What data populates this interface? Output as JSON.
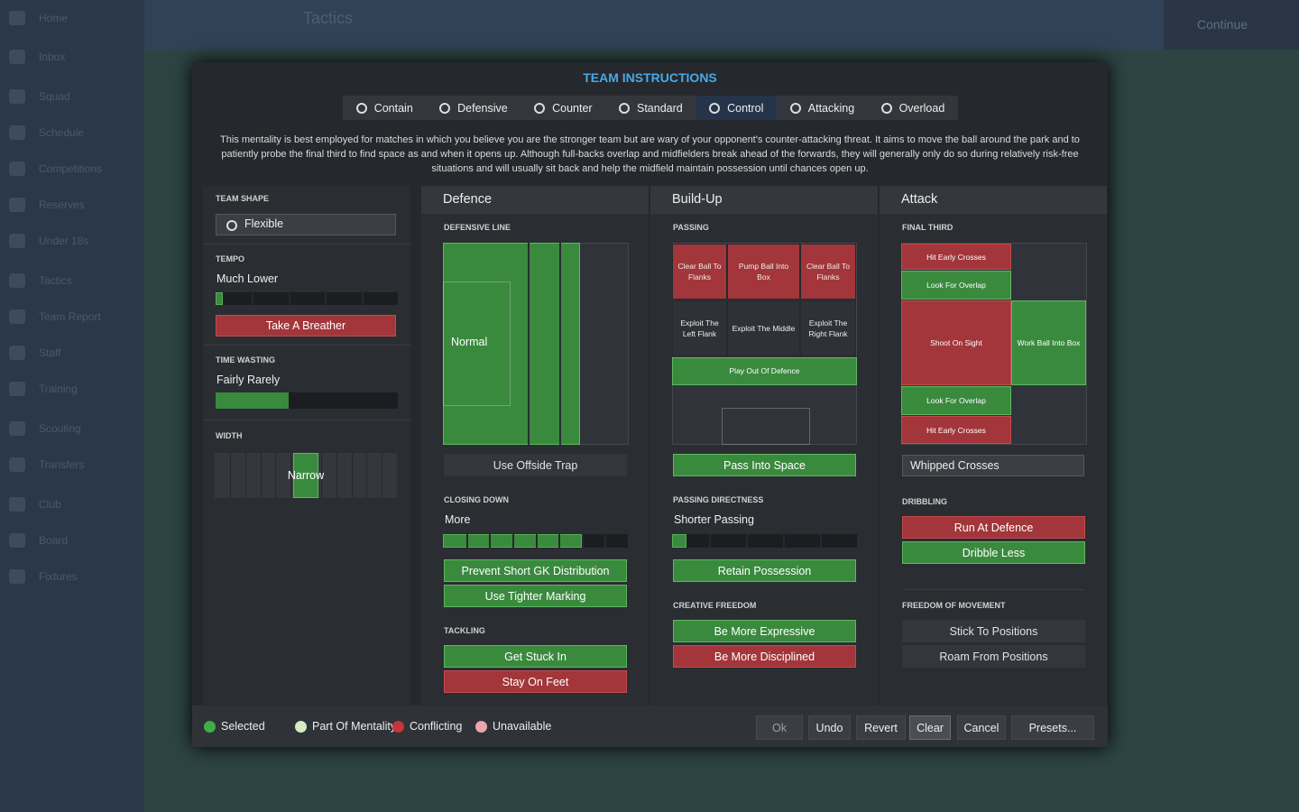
{
  "sidebar": {
    "items": [
      "Home",
      "Inbox",
      "Squad",
      "Schedule",
      "Competitions",
      "Reserves",
      "Under 18s",
      "Tactics",
      "Team Report",
      "Staff",
      "Training",
      "Scouting",
      "Transfers",
      "Club",
      "Board",
      "Fixtures"
    ]
  },
  "header": {
    "title": "Tactics",
    "continue": "Continue"
  },
  "modal": {
    "title": "TEAM INSTRUCTIONS",
    "mentalities": [
      {
        "label": "Contain",
        "selected": false
      },
      {
        "label": "Defensive",
        "selected": false
      },
      {
        "label": "Counter",
        "selected": false
      },
      {
        "label": "Standard",
        "selected": false
      },
      {
        "label": "Control",
        "selected": true
      },
      {
        "label": "Attacking",
        "selected": false
      },
      {
        "label": "Overload",
        "selected": false
      }
    ],
    "description": "This mentality is best employed for matches in which you believe you are the stronger team but are wary of your opponent's counter-attacking threat. It aims to move the ball around the park and to patiently probe the final third to find space as and when it opens up. Although full-backs overlap and midfielders break ahead of the forwards, they will generally only do so during relatively risk-free situations and will usually sit back and help the midfield maintain possession until chances open up.",
    "team_shape": {
      "label": "TEAM SHAPE",
      "value": "Flexible"
    },
    "tempo": {
      "label": "TEMPO",
      "value": "Much Lower",
      "fill": 4,
      "button": {
        "label": "Take A Breather",
        "state": "conflicting"
      }
    },
    "time_wasting": {
      "label": "TIME WASTING",
      "value": "Fairly Rarely",
      "fill": 40
    },
    "width": {
      "label": "WIDTH",
      "value": "Narrow",
      "from": 43,
      "to": 57
    },
    "defence": {
      "title": "Defence",
      "line_label": "DEFENSIVE LINE",
      "line_value": "Normal",
      "depth": 74,
      "offside": {
        "label": "Use Offside Trap",
        "state": "none"
      },
      "closing_label": "CLOSING DOWN",
      "closing_value": "More",
      "closing_fill": 75,
      "closing_buttons": [
        {
          "label": "Prevent Short GK Distribution",
          "state": "selected"
        },
        {
          "label": "Use Tighter Marking",
          "state": "selected"
        }
      ],
      "tackling_label": "TACKLING",
      "tackling_buttons": [
        {
          "label": "Get Stuck In",
          "state": "selected"
        },
        {
          "label": "Stay On Feet",
          "state": "conflicting"
        }
      ]
    },
    "buildup": {
      "title": "Build-Up",
      "passing_label": "PASSING",
      "passing_cells": [
        {
          "label": "Clear Ball To Flanks",
          "state": "conflicting"
        },
        {
          "label": "Pump Ball Into Box",
          "state": "conflicting"
        },
        {
          "label": "Clear Ball To Flanks",
          "state": "conflicting"
        },
        {
          "label": "Exploit The Left Flank",
          "state": "none"
        },
        {
          "label": "Exploit The Middle",
          "state": "none"
        },
        {
          "label": "Exploit The Right Flank",
          "state": "none"
        },
        {
          "label": "Play Out Of Defence",
          "state": "selected"
        }
      ],
      "space": {
        "label": "Pass Into Space",
        "state": "selected"
      },
      "directness_label": "PASSING DIRECTNESS",
      "directness_value": "Shorter Passing",
      "directness_fill": 8,
      "retain": {
        "label": "Retain Possession",
        "state": "selected"
      },
      "creative_label": "CREATIVE FREEDOM",
      "creative_buttons": [
        {
          "label": "Be More Expressive",
          "state": "selected"
        },
        {
          "label": "Be More Disciplined",
          "state": "conflicting"
        }
      ]
    },
    "attack": {
      "title": "Attack",
      "final_label": "FINAL THIRD",
      "final_cells": [
        {
          "label": "Hit Early Crosses",
          "state": "conflicting"
        },
        {
          "label": "Look For Overlap",
          "state": "selected"
        },
        {
          "label": "Shoot On Sight",
          "state": "conflicting"
        },
        {
          "label": "Work Ball Into Box",
          "state": "selected"
        },
        {
          "label": "Look For Overlap",
          "state": "selected"
        },
        {
          "label": "Hit Early Crosses",
          "state": "conflicting"
        }
      ],
      "crosses": "Whipped Crosses",
      "dribbling_label": "DRIBBLING",
      "dribbling_buttons": [
        {
          "label": "Run At Defence",
          "state": "conflicting"
        },
        {
          "label": "Dribble Less",
          "state": "selected"
        }
      ],
      "freedom_label": "FREEDOM OF MOVEMENT",
      "freedom_buttons": [
        {
          "label": "Stick To Positions",
          "state": "none"
        },
        {
          "label": "Roam From Positions",
          "state": "none"
        }
      ]
    },
    "legend": [
      {
        "label": "Selected",
        "color": "#3fae49"
      },
      {
        "label": "Part Of Mentality",
        "color": "#d4ecc0"
      },
      {
        "label": "Conflicting",
        "color": "#c8353b"
      },
      {
        "label": "Unavailable",
        "color": "#eaa5ad"
      }
    ],
    "footer_buttons": [
      {
        "label": "Ok",
        "highlighted": false
      },
      {
        "label": "Undo",
        "highlighted": false
      },
      {
        "label": "Revert",
        "highlighted": false
      },
      {
        "label": "Clear",
        "highlighted": true
      },
      {
        "label": "Cancel",
        "highlighted": false
      },
      {
        "label": "Presets...",
        "highlighted": false
      }
    ]
  }
}
